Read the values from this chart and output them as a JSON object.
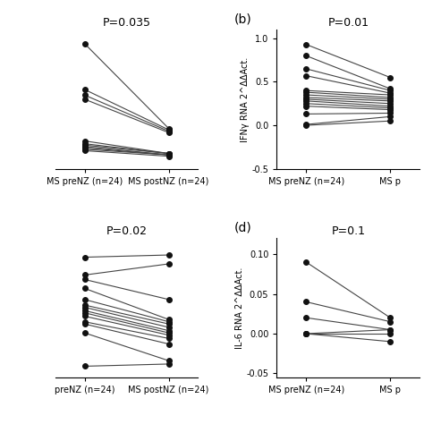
{
  "panel_a": {
    "title": "P=0.035",
    "pre": [
      0.75,
      0.42,
      0.38,
      0.35,
      0.05,
      0.03,
      0.02,
      0.01,
      0.0,
      -0.01,
      -0.02
    ],
    "post": [
      0.14,
      0.13,
      0.12,
      0.11,
      -0.04,
      -0.04,
      -0.04,
      -0.05,
      -0.05,
      -0.05,
      -0.06
    ],
    "xlabel_pre": "MS preNZ (n=24)",
    "xlabel_post": "MS postNZ (n=24)",
    "ylim": [
      -0.15,
      0.85
    ],
    "yticks": [],
    "ytick_labels": [],
    "has_ylabel": false,
    "ylabel": "",
    "label": ""
  },
  "panel_b": {
    "title": "P=0.01",
    "pre": [
      0.93,
      0.8,
      0.65,
      0.57,
      0.4,
      0.38,
      0.35,
      0.32,
      0.3,
      0.28,
      0.25,
      0.22,
      0.13,
      0.01,
      0.0
    ],
    "post": [
      0.55,
      0.42,
      0.4,
      0.37,
      0.35,
      0.32,
      0.3,
      0.28,
      0.25,
      0.22,
      0.2,
      0.18,
      0.14,
      0.1,
      0.05
    ],
    "xlabel_pre": "MS preNZ (n=24)",
    "xlabel_post": "MS p",
    "ylim": [
      -0.5,
      1.1
    ],
    "yticks": [
      -0.5,
      0.0,
      0.5,
      1.0
    ],
    "ytick_labels": [
      "-0.5",
      "0.0",
      "0.5",
      "1.0"
    ],
    "has_ylabel": true,
    "ylabel": "IFNγ RNA 2^ΔΔAct.",
    "label": "(b)"
  },
  "panel_c": {
    "title": "P=0.02",
    "pre": [
      0.88,
      0.72,
      0.68,
      0.6,
      0.5,
      0.45,
      0.43,
      0.4,
      0.38,
      0.35,
      0.3,
      0.28,
      0.2,
      -0.1
    ],
    "post": [
      0.9,
      0.82,
      0.5,
      0.32,
      0.3,
      0.28,
      0.25,
      0.22,
      0.2,
      0.18,
      0.15,
      0.1,
      -0.05,
      -0.08
    ],
    "xlabel_pre": "preNZ (n=24)",
    "xlabel_post": "MS postNZ (n=24)",
    "ylim": [
      -0.2,
      1.05
    ],
    "yticks": [],
    "ytick_labels": [],
    "has_ylabel": false,
    "ylabel": "",
    "label": ""
  },
  "panel_d": {
    "title": "P=0.1",
    "pre": [
      0.09,
      0.04,
      0.02,
      0.0,
      0.0,
      0.0
    ],
    "post": [
      0.02,
      0.015,
      0.005,
      0.005,
      0.0,
      -0.01
    ],
    "xlabel_pre": "MS preNZ (n=24)",
    "xlabel_post": "MS p",
    "ylim": [
      -0.055,
      0.12
    ],
    "yticks": [
      -0.05,
      0.0,
      0.05,
      0.1
    ],
    "ytick_labels": [
      "-0.05",
      "0.00",
      "0.05",
      "0.10"
    ],
    "has_ylabel": true,
    "ylabel": "IL-6 RNA 2^ΔΔAct.",
    "label": "(d)"
  },
  "bg_color": "#ffffff",
  "line_color": "#444444",
  "dot_color": "#111111",
  "dot_size": 4,
  "line_width": 0.8,
  "font_size": 8,
  "title_font_size": 9,
  "label_font_size": 10
}
